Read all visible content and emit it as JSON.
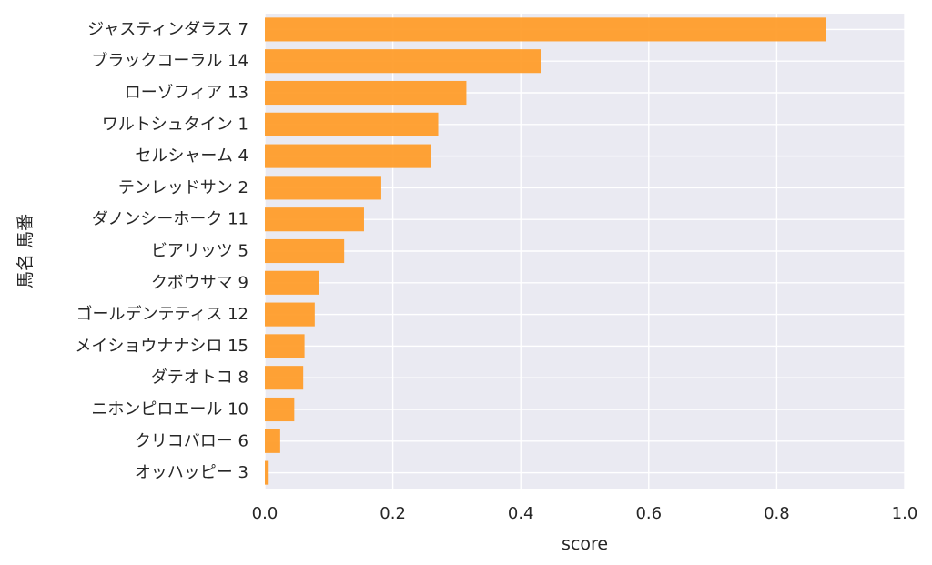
{
  "chart_data": {
    "type": "bar",
    "orientation": "horizontal",
    "xlabel": "score",
    "ylabel": "馬名 馬番",
    "xlim": [
      0.0,
      1.0
    ],
    "xticks": [
      "0.0",
      "0.2",
      "0.4",
      "0.6",
      "0.8",
      "1.0"
    ],
    "grid": true,
    "bar_color": "#ff9a25",
    "plot_background": "#eaeaf2",
    "categories": [
      "ジャスティンダラス 7",
      "ブラックコーラル 14",
      "ローゾフィア 13",
      "ワルトシュタイン 1",
      "セルシャーム 4",
      "テンレッドサン 2",
      "ダノンシーホーク 11",
      "ビアリッツ 5",
      "クボウサマ 9",
      "ゴールデンテティス 12",
      "メイショウナナシロ 15",
      "ダテオトコ 8",
      "ニホンピロエール 10",
      "クリコバロー 6",
      "オッハッピー 3"
    ],
    "values": [
      0.877,
      0.431,
      0.315,
      0.271,
      0.259,
      0.182,
      0.155,
      0.124,
      0.085,
      0.078,
      0.062,
      0.06,
      0.046,
      0.024,
      0.006
    ]
  }
}
